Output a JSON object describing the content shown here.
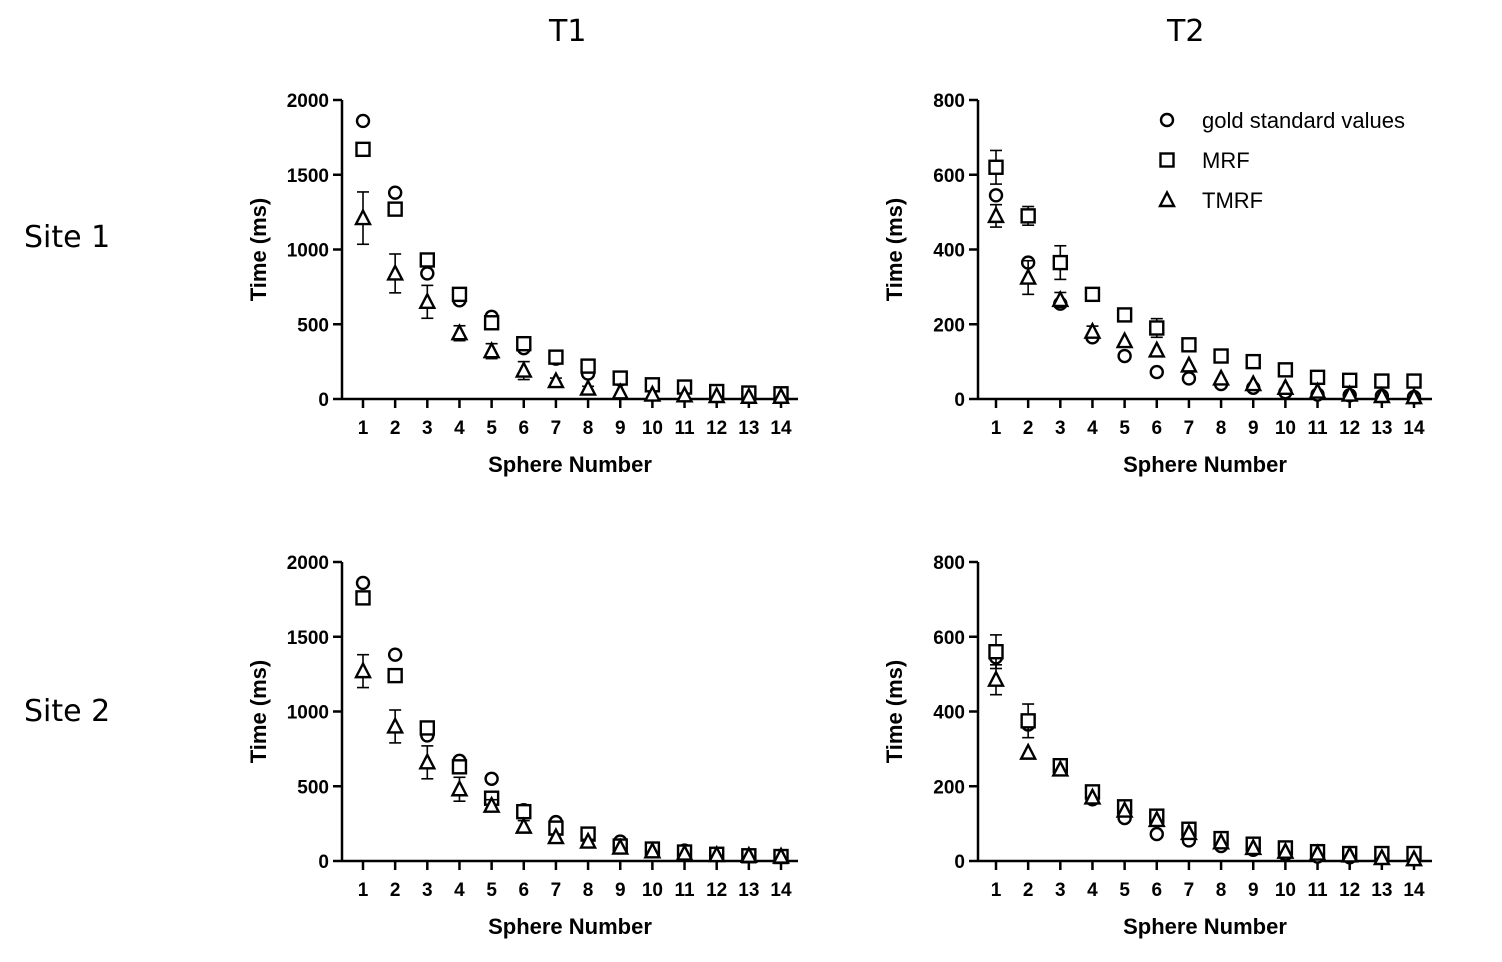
{
  "column_titles": [
    "T1",
    "T2"
  ],
  "row_labels": [
    "Site 1",
    "Site 2"
  ],
  "legend": {
    "placement": "top-right of T2 Site 1 panel",
    "entries": [
      {
        "marker": "circle",
        "label": "gold standard values"
      },
      {
        "marker": "square",
        "label": "MRF"
      },
      {
        "marker": "triangle",
        "label": "TMRF"
      }
    ]
  },
  "chart_data": [
    {
      "id": "t1-site1",
      "type": "scatter",
      "xlabel": "Sphere Number",
      "ylabel": "Time (ms)",
      "x": [
        1,
        2,
        3,
        4,
        5,
        6,
        7,
        8,
        9,
        10,
        11,
        12,
        13,
        14
      ],
      "xlim": [
        0.6,
        14.5
      ],
      "ylim": [
        0,
        2000
      ],
      "yticks": [
        0,
        500,
        1000,
        1500,
        2000
      ],
      "series": [
        {
          "name": "gold standard values",
          "marker": "circle",
          "values": [
            1860,
            1380,
            840,
            660,
            550,
            340,
            270,
            170,
            130,
            80,
            70,
            45,
            35,
            30
          ]
        },
        {
          "name": "MRF",
          "marker": "square",
          "values": [
            1670,
            1270,
            930,
            700,
            510,
            370,
            280,
            220,
            140,
            95,
            80,
            50,
            40,
            35
          ]
        },
        {
          "name": "TMRF",
          "marker": "triangle",
          "values": [
            1210,
            840,
            650,
            440,
            320,
            190,
            120,
            70,
            45,
            30,
            25,
            20,
            15,
            15
          ],
          "err": [
            175,
            130,
            110,
            50,
            50,
            60,
            20,
            15,
            10,
            5,
            5,
            5,
            5,
            5
          ]
        }
      ]
    },
    {
      "id": "t2-site1",
      "type": "scatter",
      "xlabel": "Sphere Number",
      "ylabel": "Time (ms)",
      "x": [
        1,
        2,
        3,
        4,
        5,
        6,
        7,
        8,
        9,
        10,
        11,
        12,
        13,
        14
      ],
      "xlim": [
        0.6,
        14.5
      ],
      "ylim": [
        0,
        800
      ],
      "yticks": [
        0,
        200,
        400,
        600,
        800
      ],
      "series": [
        {
          "name": "gold standard values",
          "marker": "circle",
          "values": [
            545,
            365,
            255,
            165,
            115,
            72,
            55,
            40,
            30,
            18,
            12,
            10,
            8,
            5
          ]
        },
        {
          "name": "MRF",
          "marker": "square",
          "values": [
            620,
            490,
            365,
            280,
            225,
            190,
            145,
            115,
            100,
            78,
            58,
            50,
            48,
            48
          ],
          "err": [
            45,
            25,
            45,
            10,
            10,
            25,
            10,
            5,
            10,
            5,
            5,
            5,
            5,
            5
          ]
        },
        {
          "name": "TMRF",
          "marker": "triangle",
          "values": [
            490,
            325,
            265,
            180,
            155,
            130,
            90,
            55,
            40,
            30,
            20,
            12,
            8,
            5
          ],
          "err": [
            30,
            45,
            20,
            15,
            10,
            10,
            8,
            5,
            5,
            5,
            5,
            5,
            5,
            5
          ]
        }
      ]
    },
    {
      "id": "t1-site2",
      "type": "scatter",
      "xlabel": "Sphere Number",
      "ylabel": "Time (ms)",
      "x": [
        1,
        2,
        3,
        4,
        5,
        6,
        7,
        8,
        9,
        10,
        11,
        12,
        13,
        14
      ],
      "xlim": [
        0.6,
        14.5
      ],
      "ylim": [
        0,
        2000
      ],
      "yticks": [
        0,
        500,
        1000,
        1500,
        2000
      ],
      "series": [
        {
          "name": "gold standard values",
          "marker": "circle",
          "values": [
            1860,
            1380,
            840,
            670,
            550,
            340,
            260,
            180,
            130,
            80,
            70,
            45,
            35,
            30
          ]
        },
        {
          "name": "MRF",
          "marker": "square",
          "values": [
            1760,
            1240,
            890,
            630,
            420,
            330,
            220,
            180,
            100,
            80,
            60,
            45,
            35,
            30
          ]
        },
        {
          "name": "TMRF",
          "marker": "triangle",
          "values": [
            1270,
            900,
            660,
            480,
            370,
            230,
            160,
            130,
            90,
            65,
            50,
            40,
            35,
            30
          ],
          "err": [
            110,
            110,
            110,
            80,
            40,
            40,
            20,
            15,
            10,
            10,
            5,
            5,
            5,
            5
          ]
        }
      ]
    },
    {
      "id": "t2-site2",
      "type": "scatter",
      "xlabel": "Sphere Number",
      "ylabel": "Time (ms)",
      "x": [
        1,
        2,
        3,
        4,
        5,
        6,
        7,
        8,
        9,
        10,
        11,
        12,
        13,
        14
      ],
      "xlim": [
        0.6,
        14.5
      ],
      "ylim": [
        0,
        800
      ],
      "yticks": [
        0,
        200,
        400,
        600,
        800
      ],
      "series": [
        {
          "name": "gold standard values",
          "marker": "circle",
          "values": [
            545,
            365,
            255,
            165,
            115,
            72,
            55,
            40,
            30,
            18,
            12,
            10,
            8,
            5
          ]
        },
        {
          "name": "MRF",
          "marker": "square",
          "values": [
            560,
            375,
            255,
            185,
            145,
            120,
            85,
            60,
            45,
            35,
            25,
            20,
            20,
            20
          ],
          "err": [
            45,
            45,
            10,
            10,
            10,
            10,
            5,
            5,
            5,
            5,
            5,
            5,
            5,
            5
          ]
        },
        {
          "name": "TMRF",
          "marker": "triangle",
          "values": [
            485,
            290,
            245,
            170,
            135,
            110,
            75,
            50,
            35,
            25,
            20,
            15,
            8,
            5
          ],
          "err": [
            40,
            10,
            10,
            10,
            10,
            10,
            5,
            5,
            5,
            5,
            5,
            5,
            5,
            5
          ]
        }
      ]
    }
  ]
}
